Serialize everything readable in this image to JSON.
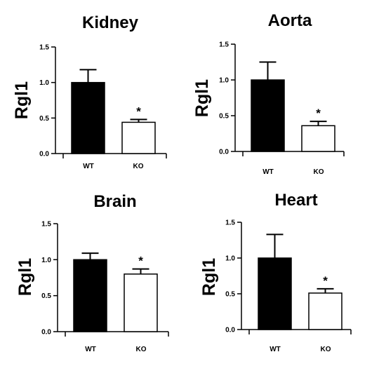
{
  "chart_data": [
    {
      "type": "bar",
      "title": "Kidney",
      "ylabel": "Rgl1",
      "categories": [
        "WT",
        "KO"
      ],
      "values": [
        1.0,
        0.44
      ],
      "errors": [
        0.18,
        0.04
      ],
      "annotations": [
        "",
        "*"
      ],
      "colors": [
        "#000000",
        "#ffffff"
      ],
      "ylim": [
        0,
        1.5
      ],
      "yticks": [
        "0.0",
        "0.5",
        "1.0",
        "1.5"
      ]
    },
    {
      "type": "bar",
      "title": "Aorta",
      "ylabel": "Rgl1",
      "categories": [
        "WT",
        "KO"
      ],
      "values": [
        1.0,
        0.36
      ],
      "errors": [
        0.25,
        0.06
      ],
      "annotations": [
        "",
        "*"
      ],
      "colors": [
        "#000000",
        "#ffffff"
      ],
      "ylim": [
        0,
        1.5
      ],
      "yticks": [
        "0.0",
        "0.5",
        "1.0",
        "1.5"
      ]
    },
    {
      "type": "bar",
      "title": "Brain",
      "ylabel": "Rgl1",
      "categories": [
        "WT",
        "KO"
      ],
      "values": [
        1.0,
        0.8
      ],
      "errors": [
        0.09,
        0.07
      ],
      "annotations": [
        "",
        "*"
      ],
      "colors": [
        "#000000",
        "#ffffff"
      ],
      "ylim": [
        0,
        1.5
      ],
      "yticks": [
        "0.0",
        "0.5",
        "1.0",
        "1.5"
      ]
    },
    {
      "type": "bar",
      "title": "Heart",
      "ylabel": "Rgl1",
      "categories": [
        "WT",
        "KO"
      ],
      "values": [
        1.0,
        0.51
      ],
      "errors": [
        0.33,
        0.06
      ],
      "annotations": [
        "",
        "*"
      ],
      "colors": [
        "#000000",
        "#ffffff"
      ],
      "ylim": [
        0,
        1.5
      ],
      "yticks": [
        "0.0",
        "0.5",
        "1.0",
        "1.5"
      ]
    }
  ]
}
